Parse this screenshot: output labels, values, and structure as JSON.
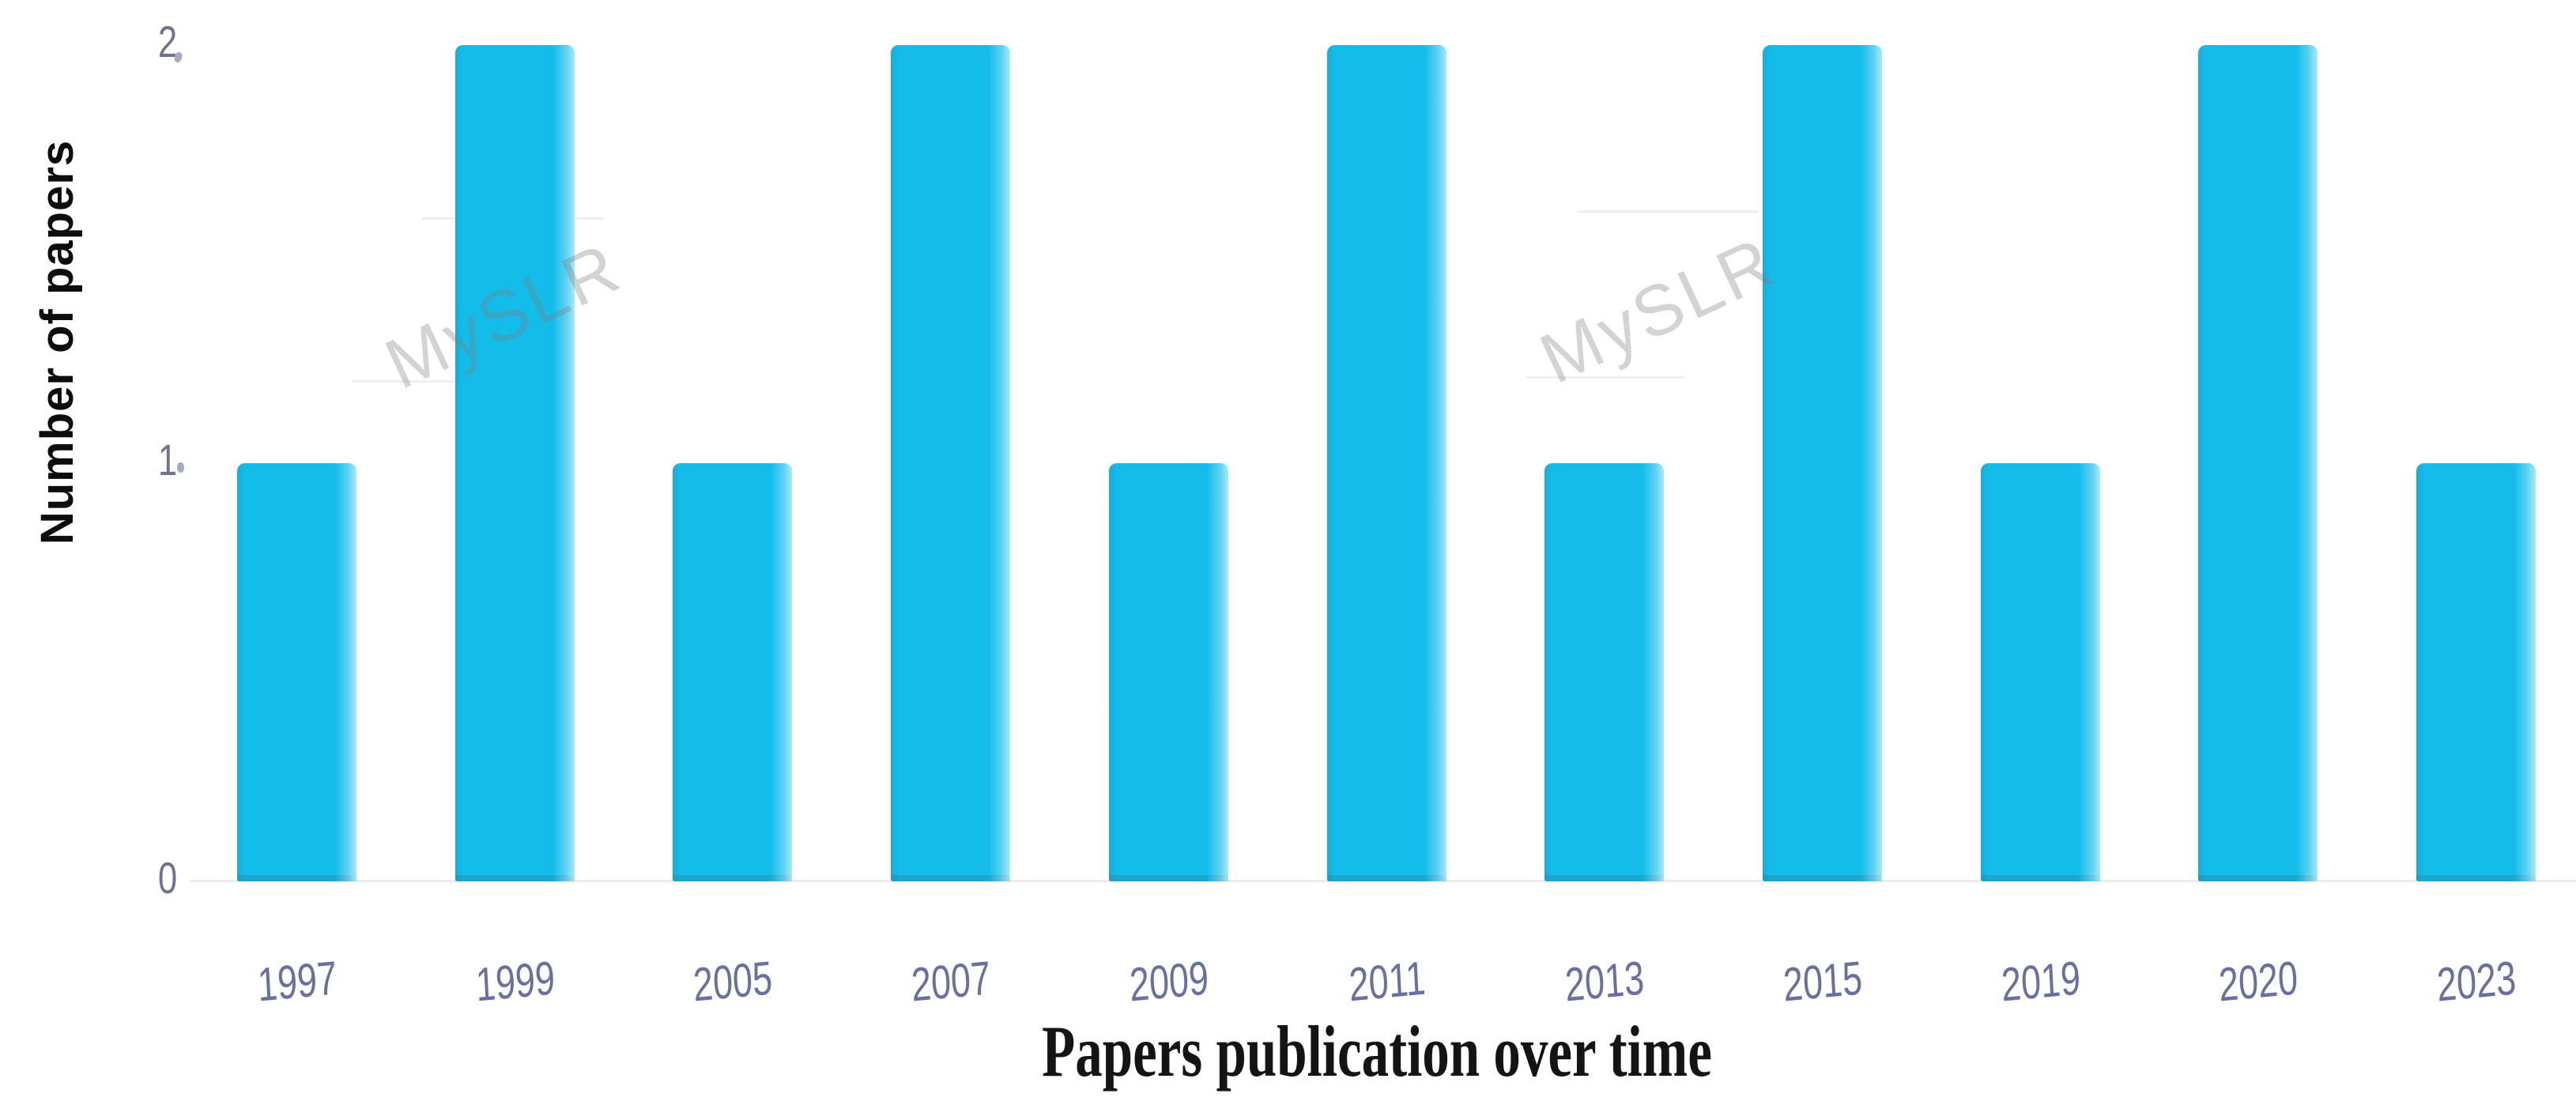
{
  "chart_data": {
    "type": "bar",
    "title": "",
    "categories": [
      "1997",
      "1999",
      "2005",
      "2007",
      "2009",
      "2011",
      "2013",
      "2015",
      "2019",
      "2020",
      "2023"
    ],
    "values": [
      1,
      2,
      1,
      2,
      1,
      2,
      1,
      2,
      1,
      2,
      1
    ],
    "series": [
      {
        "name": "Number of papers",
        "values": [
          1,
          2,
          1,
          2,
          1,
          2,
          1,
          2,
          1,
          2,
          1
        ]
      }
    ],
    "xlabel": "Papers publication over time",
    "ylabel": "Number of papers",
    "yticks": [
      0,
      1,
      2
    ],
    "ylim": [
      0,
      2
    ],
    "grid": false,
    "legend": "none",
    "bar_color": "#14bcea",
    "ytick_color": "#6e7391",
    "xtick_color": "#6970a0",
    "axis_line_color": "#ececec",
    "watermark": "MySLR"
  }
}
